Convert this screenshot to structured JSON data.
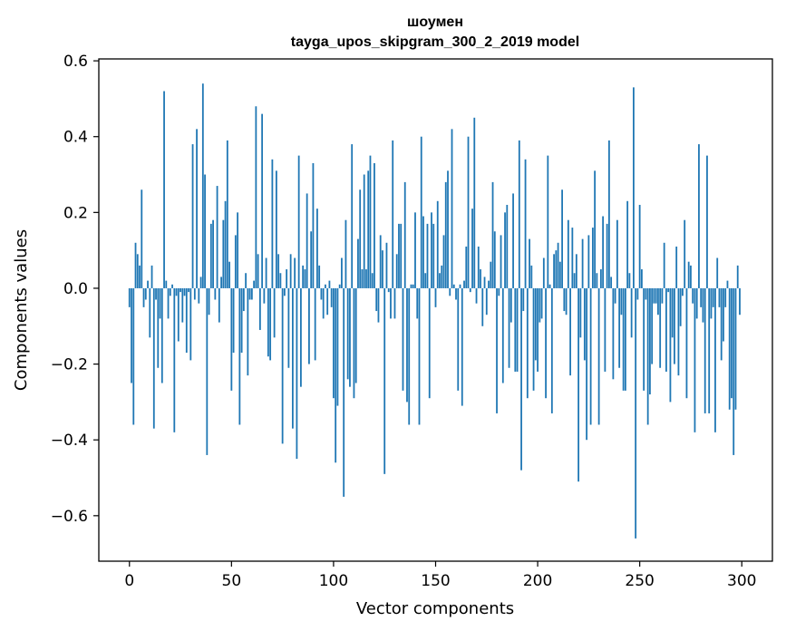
{
  "chart_data": {
    "type": "bar",
    "title": "шоумен",
    "subtitle": "tayga_upos_skipgram_300_2_2019 model",
    "xlabel": "Vector components",
    "ylabel": "Components values",
    "xlim": [
      -15,
      315
    ],
    "ylim": [
      -0.72,
      0.605
    ],
    "xticks": [
      0,
      50,
      100,
      150,
      200,
      250,
      300
    ],
    "xtick_labels": [
      "0",
      "50",
      "100",
      "150",
      "200",
      "250",
      "300"
    ],
    "yticks": [
      -0.6,
      -0.4,
      -0.2,
      0.0,
      0.2,
      0.4,
      0.6
    ],
    "ytick_labels": [
      "−0.6",
      "−0.4",
      "−0.2",
      "0.0",
      "0.2",
      "0.4",
      "0.6"
    ],
    "grid": false,
    "color": "#1f77b4",
    "x": "0..299",
    "values": [
      -0.05,
      -0.25,
      -0.36,
      0.12,
      0.09,
      0.06,
      0.26,
      -0.05,
      -0.03,
      0.02,
      -0.13,
      0.06,
      -0.37,
      -0.03,
      -0.21,
      -0.08,
      -0.25,
      0.52,
      0.02,
      -0.08,
      -0.02,
      0.01,
      -0.38,
      -0.02,
      -0.14,
      -0.01,
      -0.09,
      -0.02,
      -0.17,
      -0.01,
      -0.19,
      0.38,
      -0.03,
      0.42,
      -0.04,
      0.03,
      0.54,
      0.3,
      -0.44,
      -0.07,
      0.17,
      0.18,
      -0.03,
      0.27,
      -0.09,
      0.03,
      0.18,
      0.23,
      0.39,
      0.07,
      -0.27,
      -0.17,
      0.14,
      0.2,
      -0.36,
      -0.17,
      -0.06,
      0.04,
      -0.23,
      -0.03,
      -0.03,
      0.02,
      0.48,
      0.09,
      -0.11,
      0.46,
      -0.04,
      0.08,
      -0.18,
      -0.19,
      0.34,
      -0.13,
      0.31,
      0.09,
      0.04,
      -0.41,
      -0.02,
      0.05,
      -0.21,
      0.09,
      -0.37,
      0.08,
      -0.45,
      0.35,
      -0.26,
      0.06,
      0.05,
      0.25,
      -0.2,
      0.15,
      0.33,
      -0.19,
      0.21,
      0.06,
      -0.03,
      -0.08,
      0.01,
      -0.07,
      0.02,
      -0.05,
      -0.29,
      -0.46,
      -0.31,
      0.01,
      0.08,
      -0.55,
      0.18,
      -0.24,
      -0.26,
      0.38,
      -0.29,
      -0.25,
      0.13,
      0.26,
      0.05,
      0.3,
      0.05,
      0.31,
      0.35,
      0.04,
      0.33,
      -0.06,
      -0.09,
      0.14,
      0.1,
      -0.49,
      0.12,
      -0.01,
      -0.08,
      0.39,
      -0.08,
      0.09,
      0.17,
      0.17,
      -0.27,
      0.28,
      -0.3,
      -0.36,
      0.01,
      0.01,
      0.2,
      -0.08,
      -0.36,
      0.4,
      0.19,
      0.04,
      0.17,
      -0.29,
      0.2,
      0.17,
      -0.05,
      0.23,
      0.04,
      0.06,
      0.14,
      0.28,
      0.31,
      -0.02,
      0.42,
      0.01,
      -0.03,
      -0.27,
      0.01,
      -0.31,
      0.02,
      0.11,
      0.4,
      -0.01,
      0.21,
      0.45,
      -0.04,
      0.11,
      0.05,
      -0.1,
      0.03,
      -0.07,
      0.02,
      0.07,
      0.28,
      0.15,
      -0.33,
      -0.02,
      0.14,
      -0.25,
      0.2,
      0.22,
      -0.21,
      -0.09,
      0.25,
      -0.22,
      -0.22,
      0.39,
      -0.48,
      -0.06,
      0.34,
      -0.29,
      0.13,
      0.06,
      -0.27,
      -0.19,
      -0.22,
      -0.09,
      -0.08,
      0.08,
      -0.29,
      0.35,
      0.01,
      -0.33,
      0.09,
      0.1,
      0.12,
      0.07,
      0.26,
      -0.06,
      -0.07,
      0.18,
      -0.23,
      0.16,
      0.04,
      0.09,
      -0.51,
      -0.13,
      0.13,
      -0.19,
      -0.4,
      0.14,
      -0.36,
      0.16,
      0.31,
      0.04,
      -0.36,
      0.05,
      0.19,
      -0.22,
      0.17,
      0.39,
      0.03,
      -0.24,
      -0.04,
      0.18,
      -0.21,
      -0.07,
      -0.27,
      -0.27,
      0.23,
      0.04,
      -0.13,
      0.53,
      -0.66,
      -0.03,
      0.22,
      0.05,
      -0.27,
      -0.03,
      -0.36,
      -0.28,
      -0.2,
      -0.04,
      -0.04,
      -0.07,
      -0.21,
      -0.04,
      0.12,
      -0.22,
      -0.01,
      -0.3,
      -0.13,
      -0.2,
      0.11,
      -0.23,
      -0.1,
      -0.02,
      0.18,
      -0.29,
      0.07,
      0.06,
      -0.04,
      -0.38,
      -0.08,
      0.38,
      -0.05,
      -0.09,
      -0.33,
      0.35,
      -0.33,
      -0.08,
      -0.05,
      -0.38,
      0.08,
      -0.05,
      -0.19,
      -0.14,
      -0.05,
      0.02,
      -0.32,
      -0.29,
      -0.44,
      -0.32,
      0.06,
      -0.07
    ]
  }
}
